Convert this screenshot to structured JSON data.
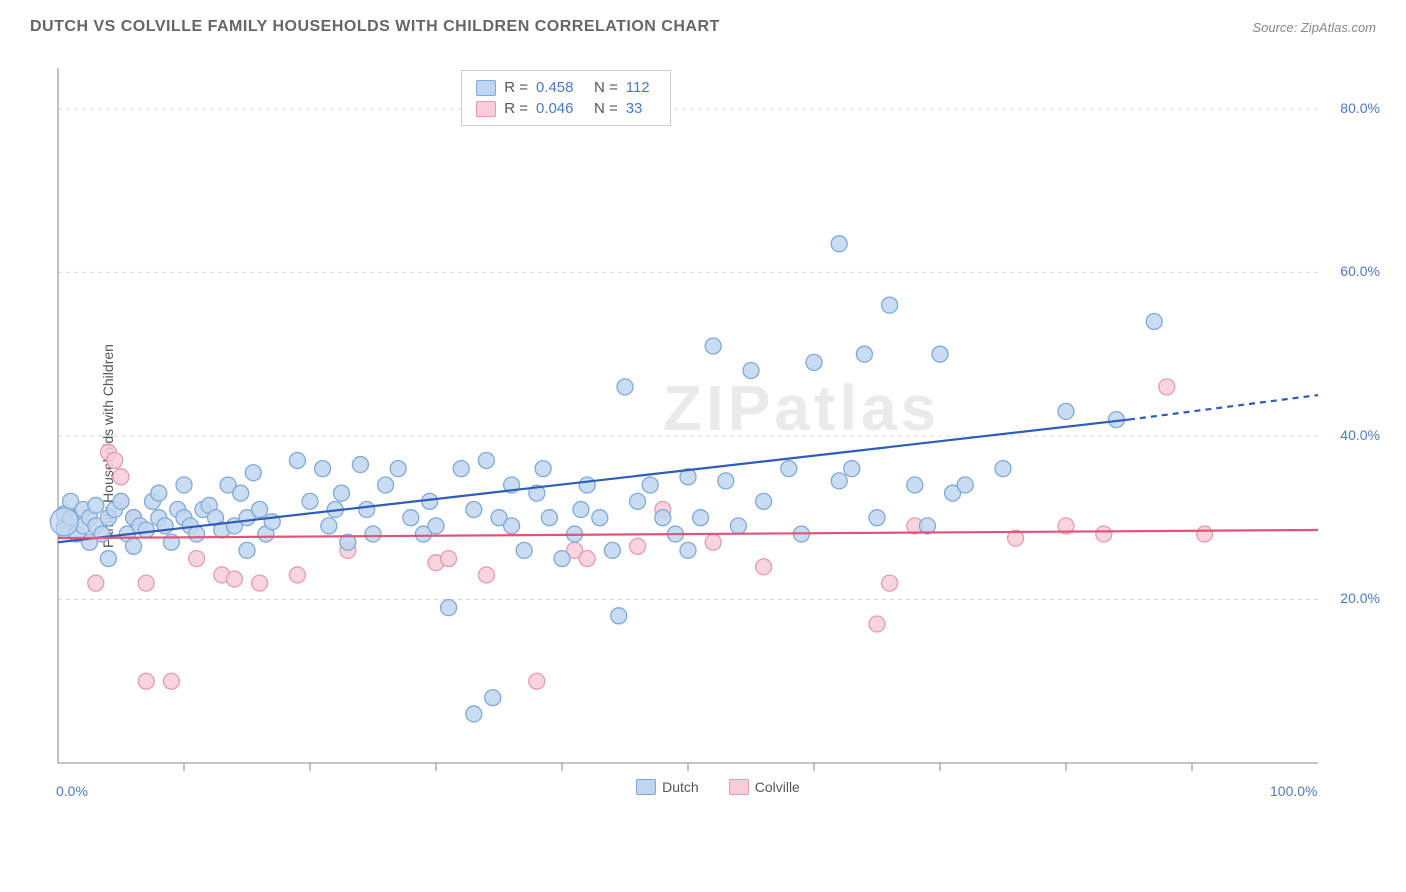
{
  "title": "DUTCH VS COLVILLE FAMILY HOUSEHOLDS WITH CHILDREN CORRELATION CHART",
  "source": "Source: ZipAtlas.com",
  "watermark": "ZIPatlas",
  "y_axis_label": "Family Households with Children",
  "chart": {
    "type": "scatter",
    "xlim": [
      0,
      100
    ],
    "ylim": [
      0,
      85
    ],
    "x_ticks": [
      0,
      100
    ],
    "x_tick_labels": [
      "0.0%",
      "100.0%"
    ],
    "x_minor_ticks": [
      10,
      20,
      30,
      40,
      50,
      60,
      70,
      80,
      90
    ],
    "y_ticks": [
      20,
      40,
      60,
      80
    ],
    "y_tick_labels": [
      "20.0%",
      "40.0%",
      "60.0%",
      "80.0%"
    ],
    "grid_color": "#d8d8d8",
    "axis_color": "#888888",
    "background_color": "#ffffff",
    "marker_radius": 8,
    "series": [
      {
        "name": "Dutch",
        "fill": "#bfd6f0",
        "stroke": "#7fa9d8",
        "line_color": "#2e5db8",
        "line_width": 2.2,
        "r": "0.458",
        "n": "112",
        "trend": {
          "x1": 0,
          "y1": 27,
          "x2": 85,
          "y2": 42,
          "x2_dash": 100,
          "y2_dash": 45
        },
        "points": [
          [
            0.5,
            29
          ],
          [
            0.5,
            30.5
          ],
          [
            0.5,
            28.5
          ],
          [
            1,
            30
          ],
          [
            1,
            32
          ],
          [
            1.5,
            28
          ],
          [
            2,
            29
          ],
          [
            2,
            31
          ],
          [
            2.5,
            27
          ],
          [
            2.5,
            30
          ],
          [
            3,
            31.5
          ],
          [
            3,
            29
          ],
          [
            3.5,
            28
          ],
          [
            4,
            25
          ],
          [
            4,
            30
          ],
          [
            4.5,
            31
          ],
          [
            5,
            32
          ],
          [
            5.5,
            28
          ],
          [
            6,
            26.5
          ],
          [
            6,
            30
          ],
          [
            6.5,
            29
          ],
          [
            7,
            28.5
          ],
          [
            7.5,
            32
          ],
          [
            8,
            30
          ],
          [
            8,
            33
          ],
          [
            8.5,
            29
          ],
          [
            9,
            27
          ],
          [
            9.5,
            31
          ],
          [
            10,
            34
          ],
          [
            10,
            30
          ],
          [
            10.5,
            29
          ],
          [
            11,
            28
          ],
          [
            11.5,
            31
          ],
          [
            12,
            31.5
          ],
          [
            12.5,
            30
          ],
          [
            13,
            28.5
          ],
          [
            13.5,
            34
          ],
          [
            14,
            29
          ],
          [
            14.5,
            33
          ],
          [
            15,
            30
          ],
          [
            15,
            26
          ],
          [
            15.5,
            35.5
          ],
          [
            16,
            31
          ],
          [
            16.5,
            28
          ],
          [
            17,
            29.5
          ],
          [
            19,
            37
          ],
          [
            20,
            32
          ],
          [
            21,
            36
          ],
          [
            21.5,
            29
          ],
          [
            22,
            31
          ],
          [
            22.5,
            33
          ],
          [
            23,
            27
          ],
          [
            24,
            36.5
          ],
          [
            24.5,
            31
          ],
          [
            25,
            28
          ],
          [
            26,
            34
          ],
          [
            27,
            36
          ],
          [
            28,
            30
          ],
          [
            29,
            28
          ],
          [
            29.5,
            32
          ],
          [
            30,
            29
          ],
          [
            31,
            19
          ],
          [
            32,
            36
          ],
          [
            33,
            31
          ],
          [
            33,
            6
          ],
          [
            34,
            37
          ],
          [
            34.5,
            8
          ],
          [
            35,
            30
          ],
          [
            36,
            29
          ],
          [
            36,
            34
          ],
          [
            37,
            26
          ],
          [
            38,
            33
          ],
          [
            38.5,
            36
          ],
          [
            39,
            30
          ],
          [
            40,
            25
          ],
          [
            41,
            28
          ],
          [
            41.5,
            31
          ],
          [
            42,
            34
          ],
          [
            43,
            30
          ],
          [
            44,
            26
          ],
          [
            44.5,
            18
          ],
          [
            45,
            46
          ],
          [
            46,
            32
          ],
          [
            47,
            34
          ],
          [
            48,
            30
          ],
          [
            49,
            28
          ],
          [
            50,
            26
          ],
          [
            50,
            35
          ],
          [
            51,
            30
          ],
          [
            52,
            51
          ],
          [
            53,
            34.5
          ],
          [
            54,
            29
          ],
          [
            55,
            48
          ],
          [
            56,
            32
          ],
          [
            58,
            36
          ],
          [
            59,
            28
          ],
          [
            60,
            49
          ],
          [
            62,
            63.5
          ],
          [
            62,
            34.5
          ],
          [
            63,
            36
          ],
          [
            64,
            50
          ],
          [
            65,
            30
          ],
          [
            66,
            56
          ],
          [
            68,
            34
          ],
          [
            69,
            29
          ],
          [
            70,
            50
          ],
          [
            71,
            33
          ],
          [
            72,
            34
          ],
          [
            75,
            36
          ],
          [
            80,
            43
          ],
          [
            84,
            42
          ],
          [
            87,
            54
          ]
        ]
      },
      {
        "name": "Colville",
        "fill": "#f7cdd8",
        "stroke": "#e49cb0",
        "line_color": "#e05577",
        "line_width": 2.2,
        "r": "0.046",
        "n": "33",
        "trend": {
          "x1": 0,
          "y1": 27.5,
          "x2": 100,
          "y2": 28.5
        },
        "points": [
          [
            3,
            22
          ],
          [
            4,
            38
          ],
          [
            4.5,
            37
          ],
          [
            5,
            32
          ],
          [
            5,
            35
          ],
          [
            6,
            30
          ],
          [
            7,
            22
          ],
          [
            7,
            10
          ],
          [
            9,
            10
          ],
          [
            11,
            25
          ],
          [
            13,
            23
          ],
          [
            14,
            22.5
          ],
          [
            16,
            22
          ],
          [
            19,
            23
          ],
          [
            23,
            26
          ],
          [
            30,
            24.5
          ],
          [
            31,
            25
          ],
          [
            34,
            23
          ],
          [
            38,
            10
          ],
          [
            41,
            26
          ],
          [
            42,
            25
          ],
          [
            46,
            26.5
          ],
          [
            48,
            31
          ],
          [
            52,
            27
          ],
          [
            56,
            24
          ],
          [
            65,
            17
          ],
          [
            66,
            22
          ],
          [
            68,
            29
          ],
          [
            76,
            27.5
          ],
          [
            80,
            29
          ],
          [
            83,
            28
          ],
          [
            88,
            46
          ],
          [
            91,
            28
          ]
        ]
      }
    ]
  },
  "legend": {
    "items": [
      {
        "label": "Dutch",
        "fill": "#bfd6f0",
        "stroke": "#7fa9d8"
      },
      {
        "label": "Colville",
        "fill": "#f7cdd8",
        "stroke": "#e49cb0"
      }
    ]
  }
}
